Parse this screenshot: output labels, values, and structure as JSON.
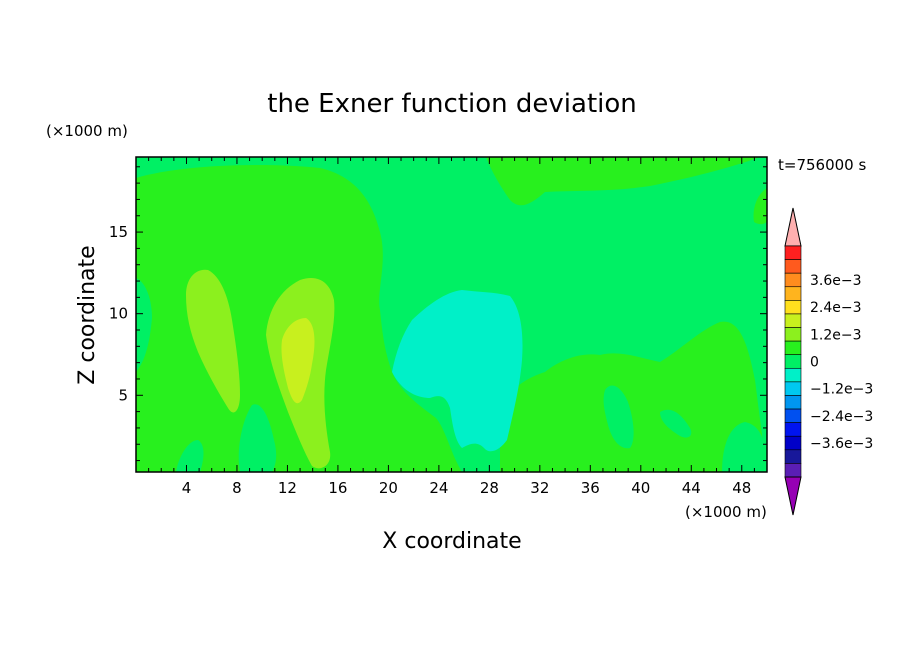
{
  "chart_data": {
    "type": "heatmap",
    "title": "the Exner function deviation",
    "xlabel": "X coordinate",
    "ylabel": "Z coordinate",
    "x_unit": "(×1000 m)",
    "y_unit": "(×1000 m)",
    "time_label": "t=756000 s",
    "xlim": [
      0,
      50
    ],
    "ylim": [
      0.3,
      19.6
    ],
    "x_ticks": [
      4,
      8,
      12,
      16,
      20,
      24,
      28,
      32,
      36,
      40,
      44,
      48
    ],
    "y_ticks": [
      5,
      10,
      15
    ],
    "colorbar": {
      "labels": [
        "3.6e−3",
        "2.4e−3",
        "1.2e−3",
        "0",
        "−1.2e−3",
        "−2.4e−3",
        "−3.6e−3"
      ],
      "label_values": [
        0.0036,
        0.0024,
        0.0012,
        0,
        -0.0012,
        -0.0024,
        -0.0036
      ],
      "level_step": 0.0006,
      "colors_top_to_bottom": [
        "#ffb0b0",
        "#ff2020",
        "#ff5a1e",
        "#ff8c1e",
        "#ffb41e",
        "#ffe01e",
        "#c8f01e",
        "#8cf01e",
        "#28f01e",
        "#00f064",
        "#00f0c8",
        "#00c8f0",
        "#0096f0",
        "#0050f0",
        "#0014f0",
        "#0000c8",
        "#18189a",
        "#5a1eb4",
        "#9600b4"
      ]
    },
    "regions": [
      {
        "level": "0 to 6e-4",
        "color": "#28f01e"
      },
      {
        "level": "-6e-4 to 0",
        "color": "#00f064"
      },
      {
        "level": "6e-4 to 1.2e-3",
        "color": "#8cf01e"
      },
      {
        "level": "1.2e-3 to 1.8e-3",
        "color": "#c8f01e"
      },
      {
        "level": "-1.2e-3 to -6e-4",
        "color": "#00f0c8"
      }
    ]
  }
}
